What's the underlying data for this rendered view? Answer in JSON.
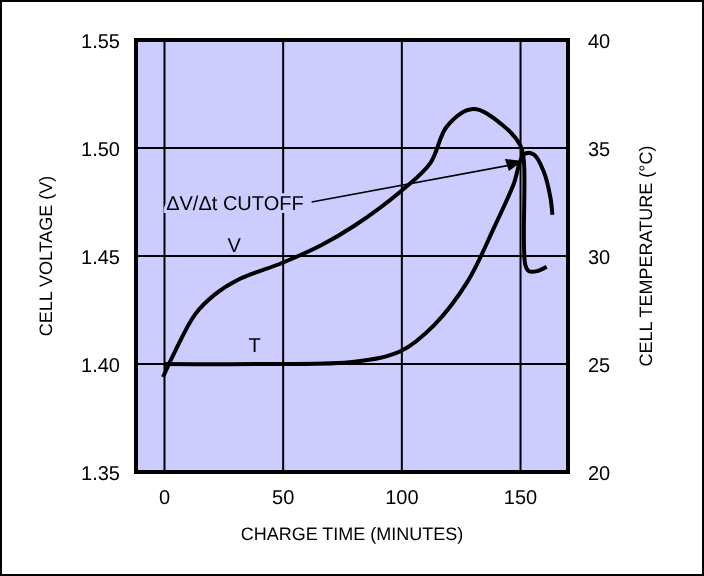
{
  "chart_data": {
    "type": "line",
    "xlabel": "CHARGE TIME (MINUTES)",
    "ylabel": "CELL VOLTAGE (V)",
    "y2label": "CELL TEMPERATURE (°C)",
    "xlim": [
      -12,
      170
    ],
    "xticks": [
      0,
      50,
      100,
      150
    ],
    "ylim": [
      1.35,
      1.55
    ],
    "yticks": [
      1.35,
      {
        "value": 1.4,
        "label": "1.40"
      },
      1.45,
      {
        "value": 1.5,
        "label": "1.50"
      },
      1.55
    ],
    "y2lim": [
      20,
      40
    ],
    "y2ticks": [
      20,
      25,
      30,
      35,
      40
    ],
    "grid": true,
    "marker": "none",
    "line_style": "solid",
    "series": [
      {
        "name": "V",
        "color": "#000000",
        "x": [
          -0.6,
          4.5,
          12.9,
          21,
          31,
          50,
          66,
          80,
          99.6,
          112,
          119,
          130,
          142,
          150,
          151.4,
          152,
          153.5,
          157,
          161
        ],
        "values": [
          1.394,
          1.406,
          1.423,
          1.432,
          1.439,
          1.447,
          1.455,
          1.464,
          1.48,
          1.493,
          1.51,
          1.518,
          1.511,
          1.501,
          1.494,
          1.446,
          1.443,
          1.443,
          1.445
        ]
      },
      {
        "name": "T",
        "color": "#000000",
        "axis": "y2",
        "x": [
          0,
          40,
          80,
          99.6,
          113.6,
          127.6,
          138.8,
          147,
          151.4,
          155.6,
          159.8,
          162.6,
          163.4
        ],
        "values": [
          25,
          25,
          25.1,
          25.6,
          26.8,
          28.8,
          31.3,
          33.3,
          34.7,
          34.7,
          33.9,
          32.7,
          31.9
        ]
      }
    ],
    "annotations": [
      {
        "text": "ΔV/Δt CUTOFF",
        "x": 151,
        "y": 1.494
      }
    ]
  }
}
